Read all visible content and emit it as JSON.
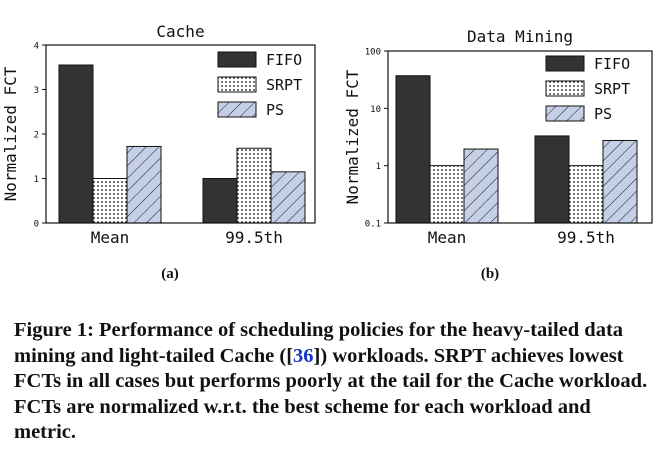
{
  "legend": [
    "FIFO",
    "SRPT",
    "PS"
  ],
  "colors": {
    "FIFO": "#333333",
    "SRPT": "#ffffff",
    "PS": "#c5d0e6"
  },
  "chart_data": [
    {
      "type": "bar",
      "title": "Cache",
      "ylabel": "Normalized FCT",
      "categories": [
        "Mean",
        "99.5th"
      ],
      "ylim": [
        0,
        4
      ],
      "yticks": [
        "0",
        "1",
        "2",
        "3",
        "4"
      ],
      "scale": "linear",
      "series": [
        {
          "name": "FIFO",
          "values": [
            3.55,
            1.0
          ]
        },
        {
          "name": "SRPT",
          "values": [
            1.0,
            1.68
          ]
        },
        {
          "name": "PS",
          "values": [
            1.72,
            1.15
          ]
        }
      ],
      "legend_position": "top-right",
      "subcaption": "(a)"
    },
    {
      "type": "bar",
      "title": "Data Mining",
      "ylabel": "Normalized FCT",
      "categories": [
        "Mean",
        "99.5th"
      ],
      "ylim": [
        0.1,
        100
      ],
      "yticks": [
        "0.1",
        "1",
        "10",
        "100"
      ],
      "scale": "log",
      "series": [
        {
          "name": "FIFO",
          "values": [
            37,
            3.3
          ]
        },
        {
          "name": "SRPT",
          "values": [
            1.0,
            1.0
          ]
        },
        {
          "name": "PS",
          "values": [
            1.95,
            2.75
          ]
        }
      ],
      "legend_position": "top-right",
      "subcaption": "(b)"
    }
  ],
  "caption": {
    "lead": "Figure 1: Performance of scheduling policies for the heavy-tailed data mining and light-tailed Cache ([",
    "ref": "36",
    "tail": "]) workloads. SRPT achieves lowest FCTs in all cases but performs poorly at the tail for the Cache workload. FCTs are normalized w.r.t. the best scheme for each workload and metric."
  }
}
